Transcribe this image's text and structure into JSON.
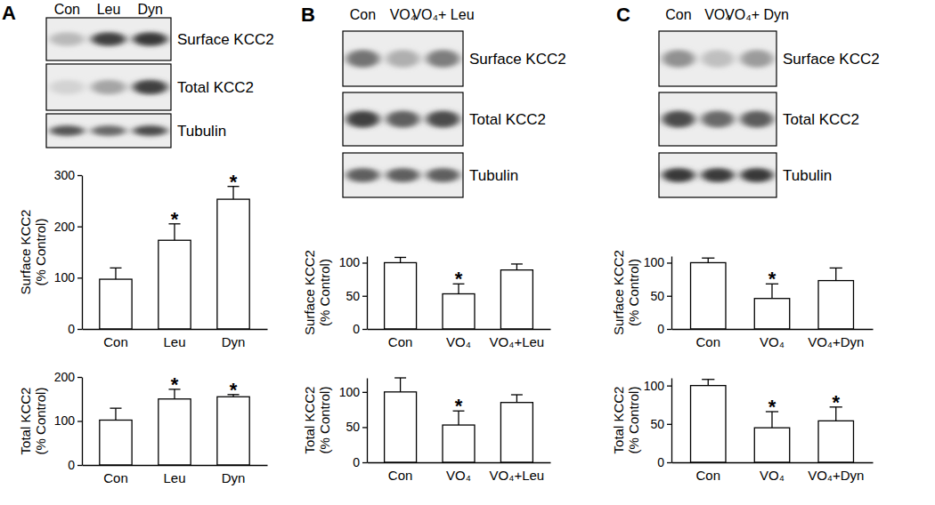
{
  "panels": [
    {
      "label": "A",
      "lanes": [
        "Con",
        "Leu",
        "Dyn"
      ],
      "blots": [
        "Surface KCC2",
        "Total KCC2",
        "Tubulin"
      ]
    },
    {
      "label": "B",
      "lanes": [
        "Con",
        "VO₄",
        "VO₄+ Leu"
      ],
      "blots": [
        "Surface KCC2",
        "Total KCC2",
        "Tubulin"
      ]
    },
    {
      "label": "C",
      "lanes": [
        "Con",
        "VO₄",
        "VO₄+ Dyn"
      ],
      "blots": [
        "Surface KCC2",
        "Total KCC2",
        "Tubulin"
      ]
    }
  ],
  "chart_data": [
    {
      "type": "bar",
      "y_label": "Surface KCC2 (% Control)",
      "categories": [
        "Con",
        "Leu",
        "Dyn"
      ],
      "values": [
        97,
        173,
        253
      ],
      "errors": [
        22,
        32,
        25
      ],
      "color": "#ffffff",
      "ylim": [
        0,
        300
      ],
      "yticks": [
        0,
        100,
        200,
        300
      ],
      "grid": false,
      "annotations": [
        {
          "x": "Leu",
          "text": "*"
        },
        {
          "x": "Dyn",
          "text": "*"
        }
      ]
    },
    {
      "type": "bar",
      "y_label": "Total KCC2 (% Control)",
      "categories": [
        "Con",
        "Leu",
        "Dyn"
      ],
      "values": [
        102,
        150,
        155
      ],
      "errors": [
        27,
        22,
        5
      ],
      "color": "#ffffff",
      "ylim": [
        0,
        200
      ],
      "yticks": [
        0,
        100,
        200
      ],
      "grid": false,
      "annotations": [
        {
          "x": "Leu",
          "text": "*"
        },
        {
          "x": "Dyn",
          "text": "*"
        }
      ]
    },
    {
      "type": "bar",
      "y_label": "Surface KCC2 (% Control)",
      "categories": [
        "Con",
        "VO₄",
        "VO₄+Leu"
      ],
      "values": [
        100,
        53,
        89
      ],
      "errors": [
        8,
        15,
        9
      ],
      "color": "#ffffff",
      "ylim": [
        0,
        110
      ],
      "yticks": [
        0,
        50,
        100
      ],
      "grid": false,
      "annotations": [
        {
          "x": "VO₄",
          "text": "*"
        }
      ]
    },
    {
      "type": "bar",
      "y_label": "Total KCC2 (% Control)",
      "categories": [
        "Con",
        "VO₄",
        "VO₄+Leu"
      ],
      "values": [
        100,
        53,
        85
      ],
      "errors": [
        20,
        20,
        11
      ],
      "color": "#ffffff",
      "ylim": [
        0,
        120
      ],
      "yticks": [
        0,
        50,
        100
      ],
      "grid": false,
      "annotations": [
        {
          "x": "VO₄",
          "text": "*"
        }
      ]
    },
    {
      "type": "bar",
      "y_label": "Surface KCC2 (% Control)",
      "categories": [
        "Con",
        "VO₄",
        "VO₄+Dyn"
      ],
      "values": [
        100,
        46,
        73
      ],
      "errors": [
        7,
        22,
        19
      ],
      "color": "#ffffff",
      "ylim": [
        0,
        110
      ],
      "yticks": [
        0,
        50,
        100
      ],
      "grid": false,
      "annotations": [
        {
          "x": "VO₄",
          "text": "*"
        }
      ]
    },
    {
      "type": "bar",
      "y_label": "Total KCC2 (% Control)",
      "categories": [
        "Con",
        "VO₄",
        "VO₄+Dyn"
      ],
      "values": [
        100,
        45,
        54
      ],
      "errors": [
        8,
        21,
        18
      ],
      "color": "#ffffff",
      "ylim": [
        0,
        110
      ],
      "yticks": [
        0,
        50,
        100
      ],
      "grid": false,
      "annotations": [
        {
          "x": "VO₄",
          "text": "*"
        },
        {
          "x": "VO₄+Dyn",
          "text": "*"
        }
      ]
    }
  ]
}
